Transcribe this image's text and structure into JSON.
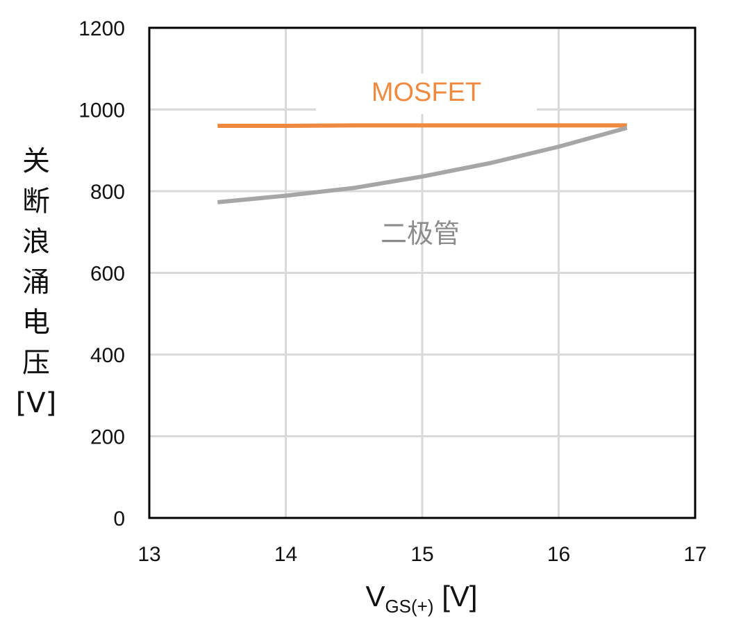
{
  "chart_data": {
    "type": "line",
    "title": "",
    "ylabel": "关断浪涌电压[V]",
    "ylabel_chars": [
      "关",
      "断",
      "浪",
      "涌",
      "电",
      "压",
      "[V]"
    ],
    "xlabel": {
      "main": "V",
      "subscript": "GS(+)",
      "unit": " [V]"
    },
    "xlim": [
      13,
      17
    ],
    "ylim": [
      0,
      1200
    ],
    "xticks": [
      13,
      14,
      15,
      16,
      17
    ],
    "yticks": [
      0,
      200,
      400,
      600,
      800,
      1000,
      1200
    ],
    "grid": true,
    "series": [
      {
        "name": "MOSFET",
        "color": "#EE8A3F",
        "x": [
          13.5,
          14.0,
          14.5,
          15.0,
          15.5,
          16.0,
          16.5
        ],
        "y": [
          960,
          960,
          961,
          961,
          961,
          961,
          961
        ]
      },
      {
        "name": "二极管",
        "color": "#A6A6A6",
        "x": [
          13.5,
          14.0,
          14.5,
          15.0,
          15.5,
          16.0,
          16.5
        ],
        "y": [
          773,
          789,
          808,
          836,
          869,
          909,
          955
        ]
      }
    ]
  }
}
